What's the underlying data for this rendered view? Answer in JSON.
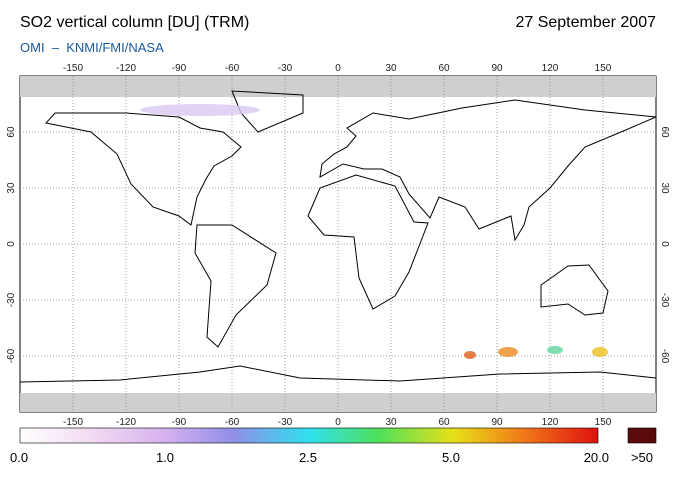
{
  "header": {
    "title": "SO2 vertical column [DU] (TRM)",
    "date": "27 September 2007",
    "subtitle": "OMI  –  KNMI/FMI/NASA"
  },
  "map": {
    "lon_ticks": [
      -150,
      -120,
      -90,
      -60,
      -30,
      0,
      30,
      60,
      90,
      120,
      150
    ],
    "lat_ticks": [
      60,
      30,
      0,
      -30,
      -60
    ]
  },
  "colorbar": {
    "labels": [
      "0.0",
      "1.0",
      "2.5",
      "5.0",
      "20.0",
      ">50"
    ]
  }
}
